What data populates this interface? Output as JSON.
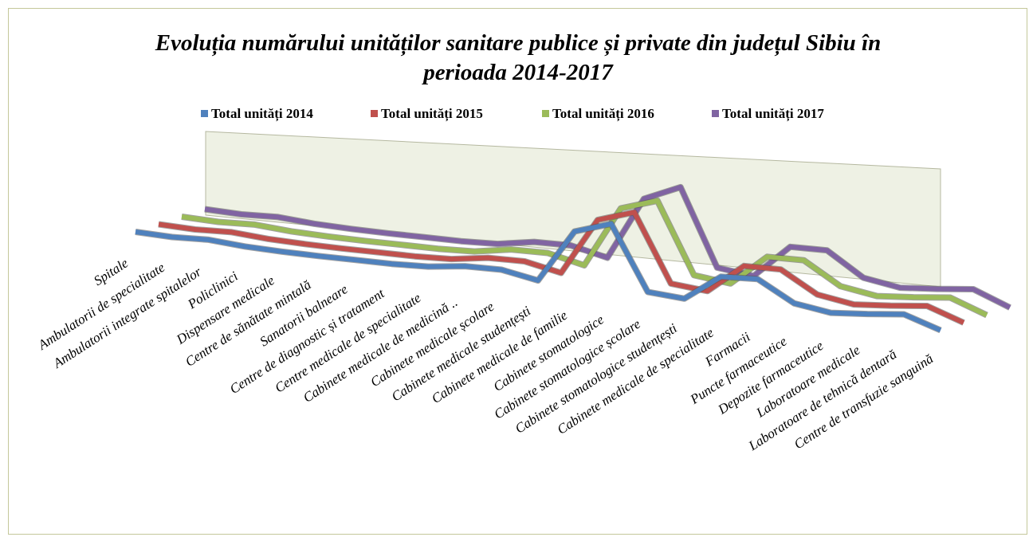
{
  "chart_data": {
    "type": "line3d",
    "title": "Evoluția numărului unităților sanitare publice și private din județul Sibiu în perioada 2014-2017",
    "categories": [
      "Spitale",
      "Ambulatorii de specialitate",
      "Ambulatorii integrate spitalelor",
      "Policlinici",
      "Dispensare medicale",
      "Centre de sănătate mintală",
      "Sanatorii balneare",
      "Centre de diagnostic și tratament",
      "Centre medicale de specialitate",
      "Cabinete medicale de medicină ..",
      "Cabinete medicale școlare",
      "Cabinete medicale studențești",
      "Cabinete medicale de familie",
      "Cabinete stomatologice",
      "Cabinete stomatologice școlare",
      "Cabinete stomatologice studențești",
      "Cabinete medicale de specialitate",
      "Farmacii",
      "Puncte farmaceutice",
      "Depozite farmaceutice",
      "Laboratoare medicale",
      "Laboratoare de tehnică dentară",
      "Centre de transfuzie sanguină"
    ],
    "series": [
      {
        "name": "Total unități 2014",
        "color": "#4f81bd",
        "values": [
          8,
          6,
          10,
          4,
          2,
          2,
          3,
          4,
          8,
          20,
          22,
          6,
          140,
          170,
          10,
          4,
          70,
          75,
          25,
          12,
          20,
          30,
          1
        ]
      },
      {
        "name": "Total unități 2015",
        "color": "#c0504d",
        "values": [
          8,
          6,
          10,
          4,
          2,
          2,
          3,
          4,
          8,
          22,
          24,
          6,
          150,
          180,
          12,
          4,
          78,
          80,
          28,
          14,
          22,
          32,
          1
        ]
      },
      {
        "name": "Total unități 2016",
        "color": "#9bbb59",
        "values": [
          8,
          6,
          10,
          4,
          2,
          2,
          3,
          4,
          8,
          24,
          26,
          6,
          160,
          190,
          14,
          4,
          82,
          84,
          30,
          16,
          24,
          34,
          1
        ]
      },
      {
        "name": "Total unități 2017",
        "color": "#8064a2",
        "values": [
          8,
          6,
          10,
          4,
          2,
          2,
          3,
          4,
          8,
          24,
          26,
          6,
          165,
          205,
          14,
          4,
          88,
          90,
          32,
          18,
          26,
          36,
          1
        ]
      }
    ]
  }
}
